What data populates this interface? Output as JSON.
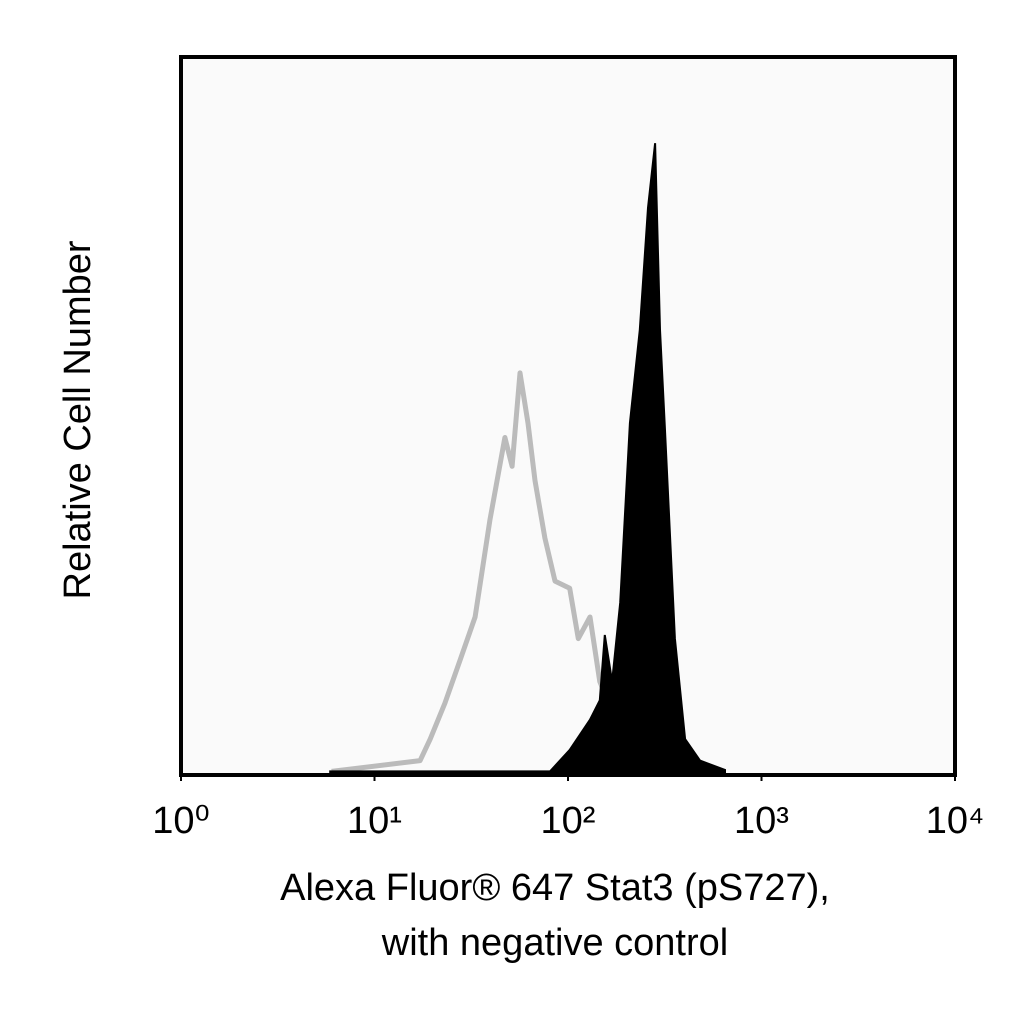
{
  "chart_data": {
    "type": "histogram-overlay",
    "ylabel": "Relative Cell Number",
    "xlabel": [
      "Alexa Fluor® 647 Stat3 (pS727),",
      "with negative control"
    ],
    "xscale": "log",
    "xlim": [
      1,
      10000
    ],
    "xticks": [
      {
        "value": 1,
        "label": "10⁰"
      },
      {
        "value": 10,
        "label": "10¹"
      },
      {
        "value": 100,
        "label": "10²"
      },
      {
        "value": 1000,
        "label": "10³"
      },
      {
        "value": 10000,
        "label": "10⁴"
      }
    ],
    "ylim": [
      0,
      100
    ],
    "series": [
      {
        "style": "outline",
        "color": "#bbbbbb",
        "x": [
          6,
          17.2,
          19.4,
          23.1,
          27.7,
          33.1,
          39.5,
          47.2,
          51.4,
          56.5,
          62.1,
          67.5,
          76,
          85.7,
          102,
          113,
          130,
          146,
          175,
          209,
          250,
          299
        ],
        "values": [
          0.5,
          2,
          5,
          10,
          16,
          22,
          35.5,
          47,
          43,
          56,
          49,
          41,
          33,
          27,
          26,
          19,
          22,
          13,
          8,
          3.5,
          2,
          0.7
        ]
      },
      {
        "style": "filled",
        "color": "#000000",
        "x": [
          5.9,
          24.5,
          80.7,
          102,
          130,
          146,
          155,
          169,
          186,
          209,
          235,
          259,
          282,
          299,
          317,
          357,
          403,
          481,
          648
        ],
        "values": [
          0.5,
          0.5,
          0.5,
          3.5,
          7.7,
          10.4,
          19.5,
          13,
          24,
          49,
          62,
          79,
          88,
          62,
          48,
          19,
          5,
          2,
          0.7
        ]
      }
    ]
  }
}
